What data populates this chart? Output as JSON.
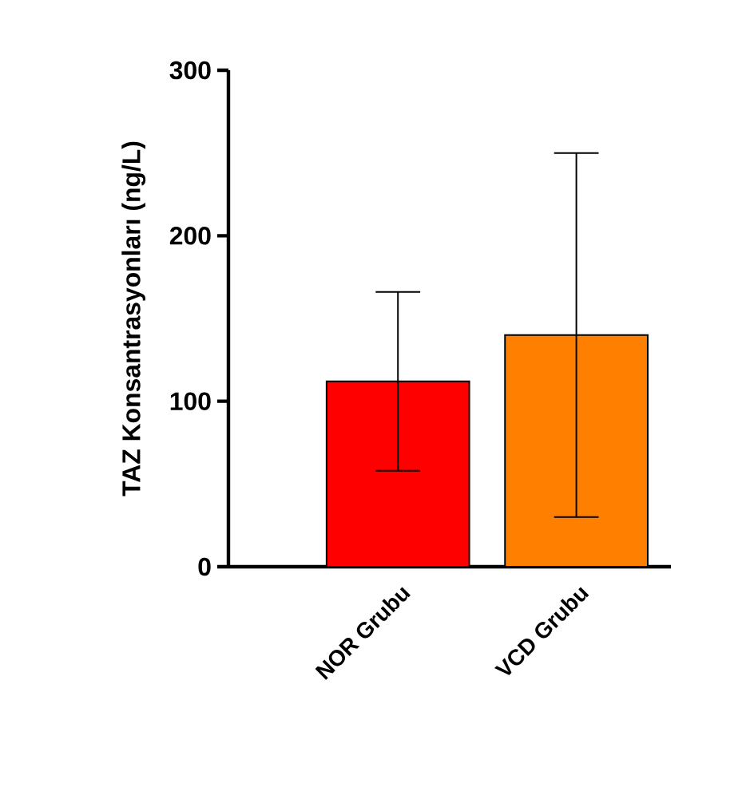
{
  "chart_data": {
    "type": "bar",
    "ylabel": "TAZ Konsantrasyonları (ng/L)",
    "categories": [
      "NOR Grubu",
      "VCD Grubu"
    ],
    "values": [
      112,
      140
    ],
    "errors": [
      54,
      110
    ],
    "colors": [
      "#ff0000",
      "#ff8000"
    ],
    "ylim": [
      0,
      300
    ],
    "yticks": [
      0,
      100,
      200,
      300
    ],
    "grid": false
  }
}
